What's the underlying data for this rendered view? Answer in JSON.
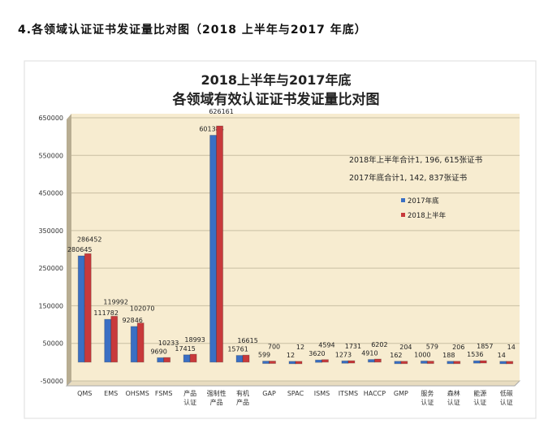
{
  "heading": "4.各领域认证证书发证量比对图（2018 上半年与2017 年底）",
  "chart_data": {
    "type": "bar",
    "title": [
      "2018上半年与2017年底",
      "各领域有效认证证书发证量比对图"
    ],
    "categories": [
      [
        "QMS"
      ],
      [
        "EMS"
      ],
      [
        "OHSMS"
      ],
      [
        "FSMS"
      ],
      [
        "产品",
        "认证"
      ],
      [
        "强制性",
        "产品"
      ],
      [
        "有机",
        "产品"
      ],
      [
        "GAP"
      ],
      [
        "SPAC"
      ],
      [
        "ISMS"
      ],
      [
        "ITSMS"
      ],
      [
        "HACCP"
      ],
      [
        "GMP"
      ],
      [
        "服务",
        "认证"
      ],
      [
        "森林",
        "认证"
      ],
      [
        "能源",
        "认证"
      ],
      [
        "低碳",
        "认证"
      ]
    ],
    "series": [
      {
        "name": "2017年底",
        "color": "#3a6fc4",
        "values": [
          280645,
          111782,
          92846,
          9690,
          17415,
          601384,
          15761,
          599,
          12,
          3620,
          1273,
          4910,
          162,
          1000,
          188,
          1536,
          14
        ]
      },
      {
        "name": "2018上半年",
        "color": "#c8393b",
        "values": [
          286452,
          119992,
          102070,
          10233,
          18993,
          626161,
          16615,
          700,
          12,
          4594,
          1731,
          6202,
          204,
          579,
          206,
          1857,
          14
        ]
      }
    ],
    "ylim": [
      -50000,
      650000
    ],
    "yticks": [
      -50000,
      50000,
      150000,
      250000,
      350000,
      450000,
      550000,
      650000
    ],
    "annotations": [
      "2018年上半年合计1, 196, 615张证书",
      "2017年底合计1, 142, 837张证书"
    ],
    "legend_position": "right-middle",
    "grid": true
  }
}
